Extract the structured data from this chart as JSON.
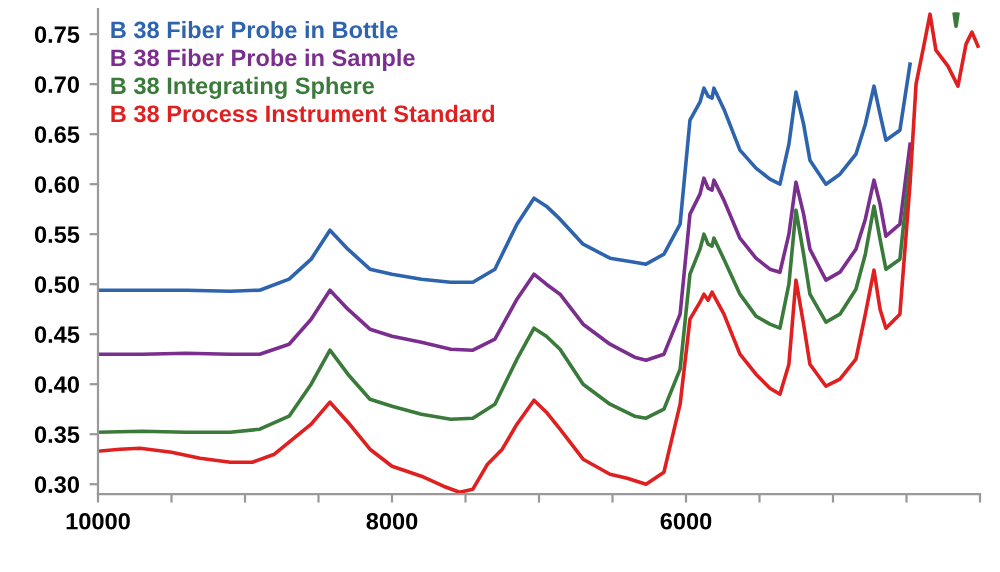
{
  "chart_data": {
    "type": "line",
    "xlim": [
      10000,
      4000
    ],
    "ylim": [
      0.29,
      0.775
    ],
    "xticks": [
      10000,
      {
        "value": 9500,
        "label": null
      },
      {
        "value": 9000,
        "label": null
      },
      {
        "value": 8500,
        "label": null
      },
      8000,
      {
        "value": 7500,
        "label": null
      },
      {
        "value": 7000,
        "label": null
      },
      {
        "value": 6500,
        "label": null
      },
      6000,
      {
        "value": 5500,
        "label": null
      },
      {
        "value": 5000,
        "label": null
      },
      {
        "value": 4500,
        "label": null
      },
      {
        "value": 4000,
        "label": null
      }
    ],
    "yticks": [
      {
        "value": 0.3,
        "label": "0.30"
      },
      {
        "value": 0.35,
        "label": "0.35"
      },
      {
        "value": 0.4,
        "label": "0.40"
      },
      {
        "value": 0.45,
        "label": "0.45"
      },
      {
        "value": 0.5,
        "label": "0.50"
      },
      {
        "value": 0.55,
        "label": "0.55"
      },
      {
        "value": 0.6,
        "label": "0.60"
      },
      {
        "value": 0.65,
        "label": "0.65"
      },
      {
        "value": 0.7,
        "label": "0.70"
      },
      {
        "value": 0.75,
        "label": "0.75"
      }
    ],
    "grid": false,
    "legend": "top left",
    "marker": "none",
    "line_style": "solid",
    "series": [
      {
        "name": "B 38 Fiber Probe in Bottle",
        "color": "#2e64ae",
        "x": [
          10000,
          9700,
          9400,
          9100,
          8900,
          8700,
          8550,
          8422,
          8300,
          8150,
          8000,
          7800,
          7600,
          7450,
          7300,
          7150,
          7034,
          6950,
          6857,
          6700,
          6517,
          6350,
          6272,
          6150,
          6040,
          5973,
          5905,
          5878,
          5850,
          5823,
          5810,
          5742,
          5633,
          5524,
          5429,
          5361,
          5300,
          5252,
          5200,
          5157,
          5048,
          4953,
          4844,
          4780,
          4721,
          4680,
          4640,
          4545,
          4476
        ],
        "values": [
          0.494,
          0.494,
          0.494,
          0.493,
          0.494,
          0.505,
          0.525,
          0.554,
          0.535,
          0.515,
          0.51,
          0.505,
          0.502,
          0.502,
          0.515,
          0.56,
          0.586,
          0.578,
          0.565,
          0.54,
          0.526,
          0.522,
          0.52,
          0.53,
          0.56,
          0.664,
          0.682,
          0.696,
          0.688,
          0.686,
          0.696,
          0.675,
          0.634,
          0.616,
          0.605,
          0.6,
          0.64,
          0.692,
          0.66,
          0.624,
          0.6,
          0.61,
          0.63,
          0.66,
          0.698,
          0.67,
          0.644,
          0.654,
          0.72
        ]
      },
      {
        "name": "B 38 Fiber Probe in Sample",
        "color": "#7a2f8e",
        "x": [
          10000,
          9700,
          9400,
          9100,
          8900,
          8700,
          8550,
          8422,
          8300,
          8150,
          8000,
          7800,
          7600,
          7450,
          7300,
          7150,
          7034,
          6950,
          6857,
          6700,
          6517,
          6350,
          6272,
          6150,
          6040,
          5973,
          5905,
          5878,
          5850,
          5823,
          5810,
          5742,
          5633,
          5524,
          5429,
          5361,
          5300,
          5252,
          5200,
          5157,
          5048,
          4953,
          4844,
          4780,
          4721,
          4680,
          4640,
          4545,
          4476
        ],
        "values": [
          0.43,
          0.43,
          0.431,
          0.43,
          0.43,
          0.44,
          0.465,
          0.494,
          0.475,
          0.455,
          0.448,
          0.442,
          0.435,
          0.434,
          0.445,
          0.485,
          0.51,
          0.5,
          0.49,
          0.46,
          0.44,
          0.427,
          0.424,
          0.43,
          0.47,
          0.57,
          0.59,
          0.606,
          0.596,
          0.594,
          0.604,
          0.584,
          0.546,
          0.526,
          0.515,
          0.512,
          0.55,
          0.602,
          0.57,
          0.535,
          0.504,
          0.512,
          0.535,
          0.565,
          0.604,
          0.58,
          0.548,
          0.56,
          0.64
        ]
      },
      {
        "name": "B 38 Integrating Sphere",
        "color": "#3a7a3a",
        "x": [
          10000,
          9700,
          9400,
          9100,
          8900,
          8700,
          8550,
          8422,
          8300,
          8150,
          8000,
          7800,
          7600,
          7450,
          7300,
          7150,
          7034,
          6950,
          6857,
          6700,
          6517,
          6350,
          6272,
          6150,
          6040,
          5973,
          5905,
          5878,
          5850,
          5823,
          5810,
          5742,
          5633,
          5524,
          5429,
          5361,
          5300,
          5252,
          5200,
          5157,
          5048,
          4953,
          4844,
          4780,
          4721,
          4680,
          4640,
          4545,
          4476,
          4300,
          4175,
          4163,
          4151
        ],
        "values": [
          0.352,
          0.353,
          0.352,
          0.352,
          0.355,
          0.368,
          0.4,
          0.434,
          0.41,
          0.385,
          0.378,
          0.37,
          0.365,
          0.366,
          0.38,
          0.425,
          0.456,
          0.448,
          0.435,
          0.4,
          0.38,
          0.368,
          0.366,
          0.375,
          0.415,
          0.51,
          0.535,
          0.55,
          0.54,
          0.538,
          0.546,
          0.525,
          0.49,
          0.468,
          0.46,
          0.456,
          0.5,
          0.574,
          0.53,
          0.49,
          0.462,
          0.47,
          0.495,
          0.53,
          0.578,
          0.545,
          0.515,
          0.525,
          0.62,
          null,
          0.77,
          0.758,
          0.77
        ]
      },
      {
        "name": "B 38 Process Instrument Standard",
        "color": "#e02020",
        "x": [
          10000,
          9850,
          9714,
          9500,
          9306,
          9100,
          8950,
          8800,
          8650,
          8550,
          8422,
          8300,
          8150,
          8000,
          7800,
          7650,
          7540,
          7450,
          7350,
          7250,
          7150,
          7034,
          6950,
          6857,
          6700,
          6517,
          6400,
          6272,
          6150,
          6040,
          5973,
          5905,
          5878,
          5850,
          5823,
          5742,
          5633,
          5524,
          5429,
          5361,
          5300,
          5252,
          5200,
          5157,
          5048,
          4953,
          4844,
          4780,
          4721,
          4680,
          4640,
          4545,
          4476,
          4435,
          4380,
          4340,
          4300,
          4218,
          4150,
          4095,
          4055,
          4014
        ],
        "values": [
          0.333,
          0.335,
          0.336,
          0.332,
          0.326,
          0.322,
          0.322,
          0.33,
          0.348,
          0.36,
          0.382,
          0.362,
          0.335,
          0.318,
          0.308,
          0.298,
          0.292,
          0.295,
          0.32,
          0.335,
          0.36,
          0.384,
          0.372,
          0.355,
          0.325,
          0.31,
          0.306,
          0.3,
          0.312,
          0.38,
          0.465,
          0.482,
          0.49,
          0.484,
          0.492,
          0.47,
          0.43,
          0.41,
          0.396,
          0.39,
          0.42,
          0.504,
          0.46,
          0.42,
          0.398,
          0.405,
          0.425,
          0.47,
          0.514,
          0.475,
          0.456,
          0.47,
          0.6,
          0.7,
          0.74,
          0.77,
          0.734,
          0.718,
          0.698,
          0.74,
          0.752,
          0.738
        ]
      }
    ]
  }
}
